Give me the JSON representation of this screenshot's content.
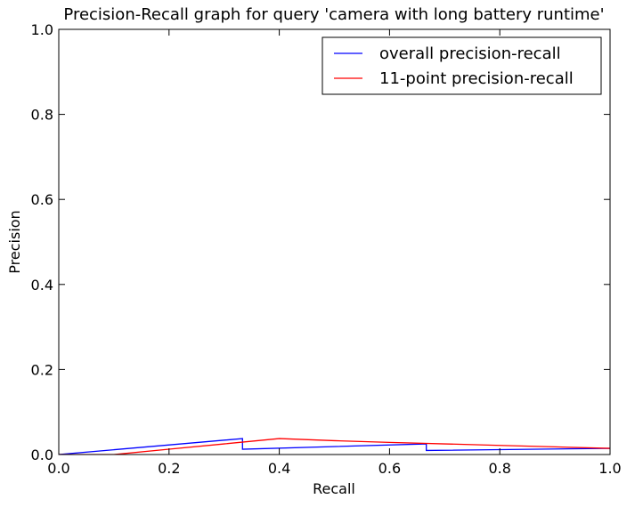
{
  "chart_data": {
    "type": "line",
    "title": "Precision-Recall graph for query 'camera with long battery runtime'",
    "xlabel": "Recall",
    "ylabel": "Precision",
    "xlim": [
      0.0,
      1.0
    ],
    "ylim": [
      0.0,
      1.0
    ],
    "xticks": [
      "0.0",
      "0.2",
      "0.4",
      "0.6",
      "0.8",
      "1.0"
    ],
    "yticks": [
      "0.0",
      "0.2",
      "0.4",
      "0.6",
      "0.8",
      "1.0"
    ],
    "grid": false,
    "legend_position": "top-right",
    "series": [
      {
        "name": "overall precision-recall",
        "color": "#0000ff",
        "x": [
          0.0,
          0.3333,
          0.3333,
          0.6667,
          0.6667,
          1.0
        ],
        "y": [
          0.0,
          0.0375,
          0.0125,
          0.025,
          0.0095,
          0.0145
        ]
      },
      {
        "name": "11-point precision-recall",
        "color": "#ff0000",
        "x": [
          0.0,
          0.1,
          0.2,
          0.3,
          0.4,
          0.5,
          0.6,
          0.7,
          0.8,
          0.9,
          1.0
        ],
        "y": [
          0.0,
          0.0,
          0.0125,
          0.025,
          0.0375,
          0.0325,
          0.0285,
          0.025,
          0.0215,
          0.018,
          0.0145
        ]
      }
    ]
  }
}
